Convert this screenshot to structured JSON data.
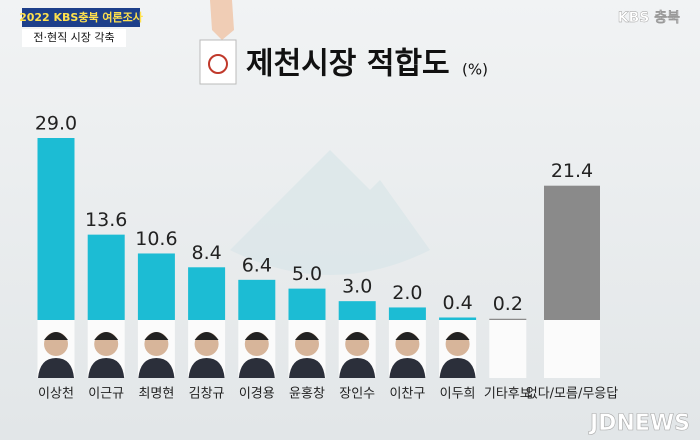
{
  "chart_data": {
    "type": "bar",
    "badge": "2022 KBS충북 여론조사",
    "subtitle": "전·현직 시장 각축",
    "title": "제천시장 적합도",
    "unit": "(%)",
    "logo": "KBS 충북",
    "watermark": "JDNEWS",
    "categories": [
      "이상천",
      "이근규",
      "최명현",
      "김창규",
      "이경용",
      "윤홍창",
      "장인수",
      "이찬구",
      "이두희",
      "기타후보",
      "없다/모름/무응답"
    ],
    "values": [
      29,
      13.6,
      10.6,
      8.4,
      6.4,
      5,
      3,
      2,
      0.4,
      0.2,
      21.4
    ],
    "value_labels": [
      "29.0",
      "13.6",
      "10.6",
      "8.4",
      "6.4",
      "5.0",
      "3.0",
      "2.0",
      "0.4",
      "0.2",
      "21.4"
    ],
    "colors": [
      "#1cbcd4",
      "#1cbcd4",
      "#1cbcd4",
      "#1cbcd4",
      "#1cbcd4",
      "#1cbcd4",
      "#1cbcd4",
      "#1cbcd4",
      "#1cbcd4",
      "#8a8a8a",
      "#8a8a8a"
    ]
  }
}
